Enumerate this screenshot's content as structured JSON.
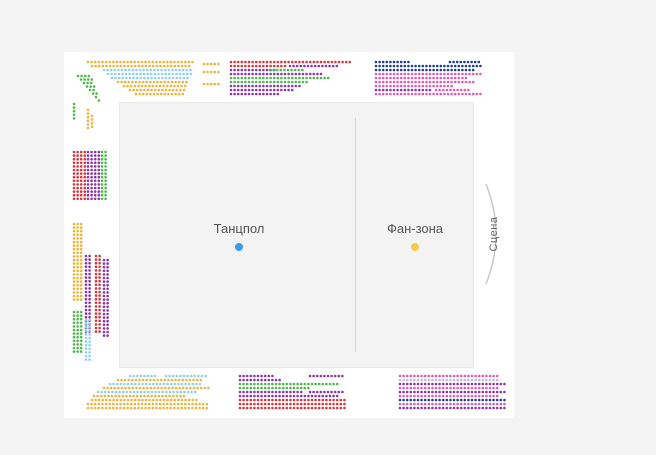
{
  "zones": {
    "dance_floor": {
      "label": "Танцпол",
      "dot_color": "#3a9ce8"
    },
    "fan_zone": {
      "label": "Фан-зона",
      "dot_color": "#f2cc46"
    }
  },
  "stage": {
    "label": "Сцена"
  },
  "palette": {
    "yellow": "#f0b23a",
    "lightblue": "#8fd0ee",
    "green": "#4cb84a",
    "red": "#d6363c",
    "purple": "#8a34a8",
    "pink": "#e05bb0",
    "navy": "#1f3d8f",
    "lavender": "#c9b5e4"
  }
}
